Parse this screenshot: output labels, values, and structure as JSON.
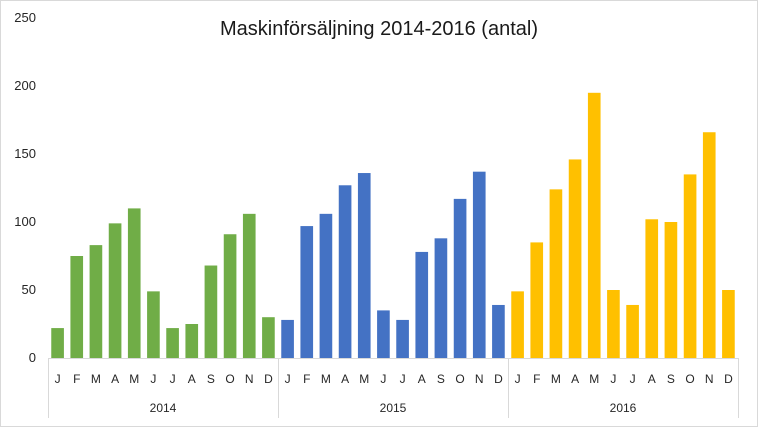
{
  "chart_data": {
    "type": "bar",
    "title": "Maskinförsäljning 2014-2016 (antal)",
    "xlabel": "",
    "ylabel": "",
    "ylim": [
      0,
      250
    ],
    "yticks": [
      0,
      50,
      100,
      150,
      200,
      250
    ],
    "grid": false,
    "legend": "none",
    "groups": [
      {
        "label": "2014",
        "color": "#70ad47",
        "months": [
          "J",
          "F",
          "M",
          "A",
          "M",
          "J",
          "J",
          "A",
          "S",
          "O",
          "N",
          "D"
        ],
        "values": [
          22,
          75,
          83,
          99,
          110,
          49,
          22,
          25,
          68,
          91,
          106,
          30
        ]
      },
      {
        "label": "2015",
        "color": "#4472c4",
        "months": [
          "J",
          "F",
          "M",
          "A",
          "M",
          "J",
          "J",
          "A",
          "S",
          "O",
          "N",
          "D"
        ],
        "values": [
          28,
          97,
          106,
          127,
          136,
          35,
          28,
          78,
          88,
          117,
          137,
          39
        ]
      },
      {
        "label": "2016",
        "color": "#ffc000",
        "months": [
          "J",
          "F",
          "M",
          "A",
          "M",
          "J",
          "J",
          "A",
          "S",
          "O",
          "N",
          "D"
        ],
        "values": [
          49,
          85,
          124,
          146,
          195,
          50,
          39,
          102,
          100,
          135,
          166,
          50
        ]
      }
    ]
  }
}
